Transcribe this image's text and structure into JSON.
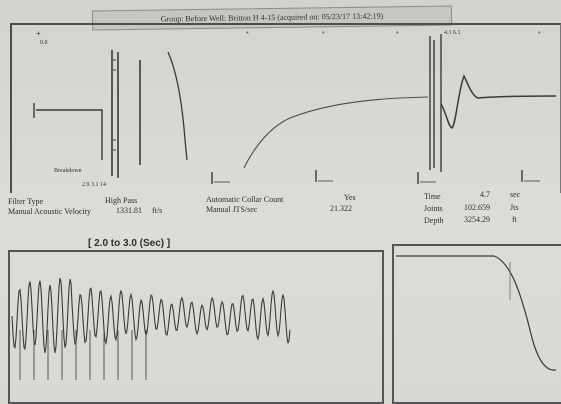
{
  "header": {
    "title": "Group: Before   Well: Britton H 4-15 (acquired on: 05/23/17 13:42:19)"
  },
  "trace_labels": {
    "left_small": "Breakdown",
    "left_bottom": "2.9 3.1 14",
    "marker_top_1": "0.0",
    "marker_top_2": "4.1 6.1"
  },
  "info_left": {
    "filter_type_label": "Filter Type",
    "filter_type_value": "High Pass",
    "manual_velocity_label": "Manual Acoustic Velocity",
    "manual_velocity_value": "1331.81",
    "manual_velocity_unit": "ft/s"
  },
  "info_middle": {
    "auto_collar_label": "Automatic Collar Count",
    "auto_collar_value": "Yes",
    "manual_jts_label": "Manual JTS/sec",
    "manual_jts_value": "21.322"
  },
  "info_right": {
    "time_label": "Time",
    "time_value": "4.7",
    "time_unit": "sec",
    "joints_label": "Joints",
    "joints_value": "102.659",
    "joints_unit": "Jts",
    "depth_label": "Depth",
    "depth_value": "3254.29",
    "depth_unit": "ft"
  },
  "bottom_panel": {
    "range_title": "[ 2.0  to  3.0 (Sec) ]"
  },
  "colors": {
    "trace": "#3a3a3a",
    "frame": "#4d4d4d",
    "background": "#d7d8d4"
  }
}
